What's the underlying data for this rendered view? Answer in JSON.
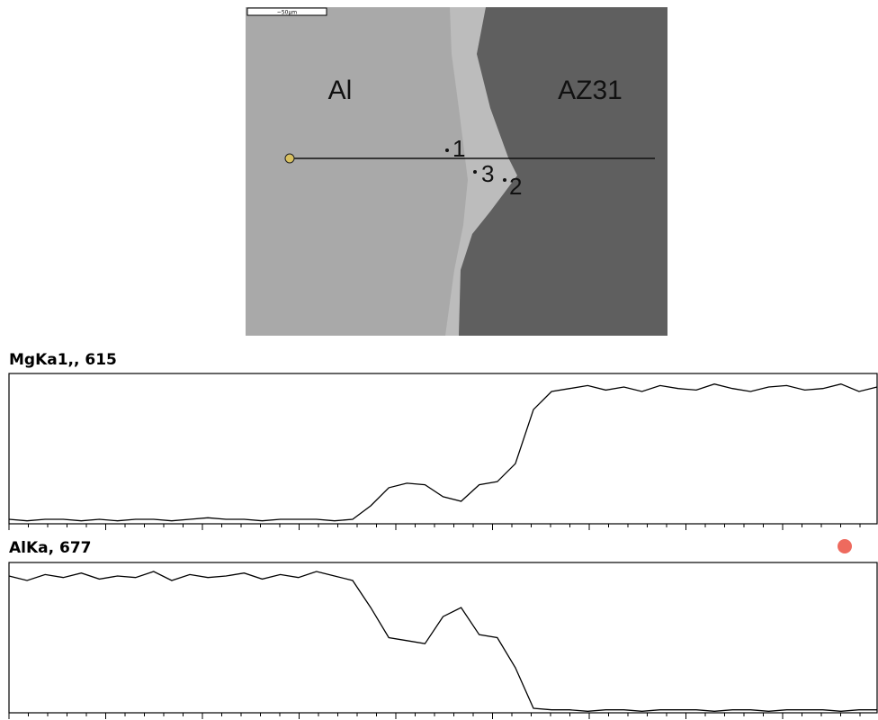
{
  "image": {
    "scale_bar": "~50µm",
    "labels": [
      "Al",
      "AZ31",
      "1",
      "3",
      "2"
    ]
  },
  "chart_data": [
    {
      "type": "line",
      "title": "MgKa1,, 615",
      "color": "#000000",
      "ylim": [
        0,
        100
      ],
      "values": [
        3,
        2,
        3,
        3,
        2,
        3,
        2,
        3,
        3,
        2,
        3,
        4,
        3,
        3,
        2,
        3,
        3,
        3,
        2,
        3,
        12,
        24,
        27,
        26,
        18,
        15,
        26,
        28,
        40,
        76,
        88,
        90,
        92,
        89,
        91,
        88,
        92,
        90,
        89,
        93,
        90,
        88,
        91,
        92,
        89,
        90,
        93,
        88,
        91
      ]
    },
    {
      "type": "line",
      "title": "AlKa, 677",
      "color": "#000000",
      "ylim": [
        0,
        100
      ],
      "values": [
        91,
        88,
        92,
        90,
        93,
        89,
        91,
        90,
        94,
        88,
        92,
        90,
        91,
        93,
        89,
        92,
        90,
        94,
        91,
        88,
        70,
        50,
        48,
        46,
        64,
        70,
        52,
        50,
        30,
        3,
        2,
        2,
        1,
        2,
        2,
        1,
        2,
        2,
        2,
        1,
        2,
        2,
        1,
        2,
        2,
        2,
        1,
        2,
        2
      ]
    }
  ]
}
